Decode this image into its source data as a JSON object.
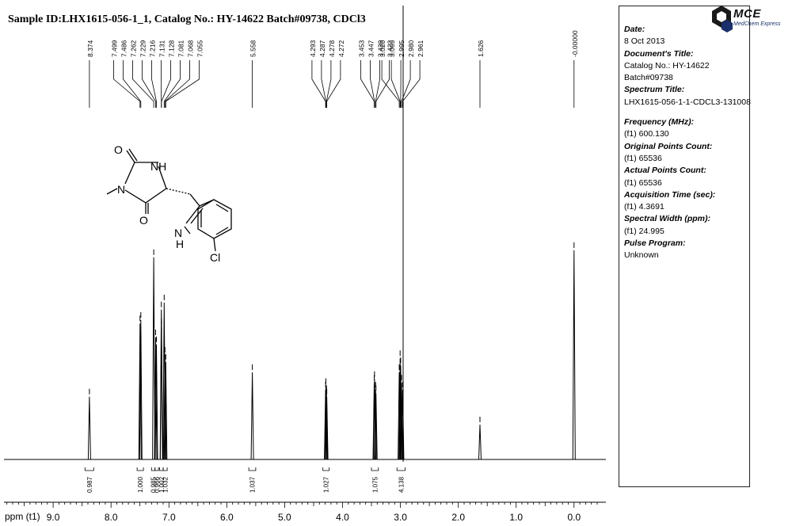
{
  "title": "Sample ID:LHX1615-056-1_1, Catalog No.: HY-14622 Batch#09738, CDCl3",
  "axis_unit_label": "ppm (t1)",
  "logo": {
    "brand": "MCE",
    "tagline": "MedChem Express"
  },
  "molecule_labels": {
    "o1": "O",
    "o2": "O",
    "nh": "NH",
    "n": "N",
    "indole_n": "N",
    "indole_h": "H",
    "cl": "Cl"
  },
  "info": {
    "date_label": "Date:",
    "date": "8 Oct 2013",
    "doc_title_label": "Document's Title:",
    "doc_title_1": "Catalog No.: HY-14622",
    "doc_title_2": "Batch#09738",
    "spectrum_title_label": "Spectrum Title:",
    "spectrum_title": "LHX1615-056-1-1-CDCL3-131008",
    "frequency_label": "Frequency (MHz):",
    "frequency": "(f1) 600.130",
    "orig_points_label": "Original Points Count:",
    "orig_points": "(f1) 65536",
    "actual_points_label": "Actual Points Count:",
    "actual_points": "(f1) 65536",
    "acq_time_label": "Acquisition Time (sec):",
    "acq_time": "(f1) 4.3691",
    "spectral_width_label": "Spectral Width (ppm):",
    "spectral_width": "(f1) 24.995",
    "pulse_label": "Pulse Program:",
    "pulse": "Unknown"
  },
  "chart_data": {
    "type": "line",
    "x_axis": {
      "label": "ppm (t1)",
      "min": -0.55,
      "max": 9.85,
      "reversed": true,
      "ticks": [
        "9.0",
        "8.0",
        "7.0",
        "6.0",
        "5.0",
        "4.0",
        "3.0",
        "2.0",
        "1.0",
        "0.0"
      ]
    },
    "peak_labels": [
      "8.374",
      "7.499",
      "7.486",
      "7.262",
      "7.229",
      "7.216",
      "7.131",
      "7.128",
      "7.081",
      "7.068",
      "7.055",
      "5.558",
      "4.293",
      "4.287",
      "4.278",
      "4.272",
      "3.453",
      "3.447",
      "3.429",
      "3.423",
      "3.020",
      "3.005",
      "2.995",
      "2.980",
      "2.961",
      "1.626",
      "-0.00000"
    ],
    "peaks": [
      {
        "ppm": 8.374,
        "height": 0.18
      },
      {
        "ppm": 7.499,
        "height": 0.39
      },
      {
        "ppm": 7.486,
        "height": 0.4
      },
      {
        "ppm": 7.262,
        "height": 0.58
      },
      {
        "ppm": 7.229,
        "height": 0.35
      },
      {
        "ppm": 7.216,
        "height": 0.33
      },
      {
        "ppm": 7.131,
        "height": 0.43
      },
      {
        "ppm": 7.128,
        "height": 0.38
      },
      {
        "ppm": 7.081,
        "height": 0.45
      },
      {
        "ppm": 7.068,
        "height": 0.3
      },
      {
        "ppm": 7.055,
        "height": 0.28
      },
      {
        "ppm": 5.558,
        "height": 0.25
      },
      {
        "ppm": 4.293,
        "height": 0.2
      },
      {
        "ppm": 4.287,
        "height": 0.21
      },
      {
        "ppm": 4.278,
        "height": 0.19
      },
      {
        "ppm": 4.272,
        "height": 0.18
      },
      {
        "ppm": 3.453,
        "height": 0.22
      },
      {
        "ppm": 3.447,
        "height": 0.23
      },
      {
        "ppm": 3.429,
        "height": 0.2
      },
      {
        "ppm": 3.423,
        "height": 0.19
      },
      {
        "ppm": 3.02,
        "height": 0.25
      },
      {
        "ppm": 3.005,
        "height": 0.29
      },
      {
        "ppm": 2.995,
        "height": 0.27
      },
      {
        "ppm": 2.98,
        "height": 0.22
      },
      {
        "ppm": 2.961,
        "height": 0.2
      },
      {
        "ppm": 1.626,
        "height": 0.1
      },
      {
        "ppm": 0.0,
        "height": 0.6
      }
    ],
    "integrals": [
      {
        "from": 8.45,
        "to": 8.3,
        "value": "0.987"
      },
      {
        "from": 7.55,
        "to": 7.44,
        "value": "1.000"
      },
      {
        "from": 7.3,
        "to": 7.24,
        "value": "0.985"
      },
      {
        "from": 7.24,
        "to": 7.18,
        "value": "0.966"
      },
      {
        "from": 7.16,
        "to": 7.1,
        "value": "1.002"
      },
      {
        "from": 7.1,
        "to": 7.03,
        "value": "1.032"
      },
      {
        "from": 5.62,
        "to": 5.5,
        "value": "1.037"
      },
      {
        "from": 4.34,
        "to": 4.23,
        "value": "1.027"
      },
      {
        "from": 3.5,
        "to": 3.38,
        "value": "1.075"
      },
      {
        "from": 3.06,
        "to": 2.92,
        "value": "4.138"
      }
    ]
  }
}
